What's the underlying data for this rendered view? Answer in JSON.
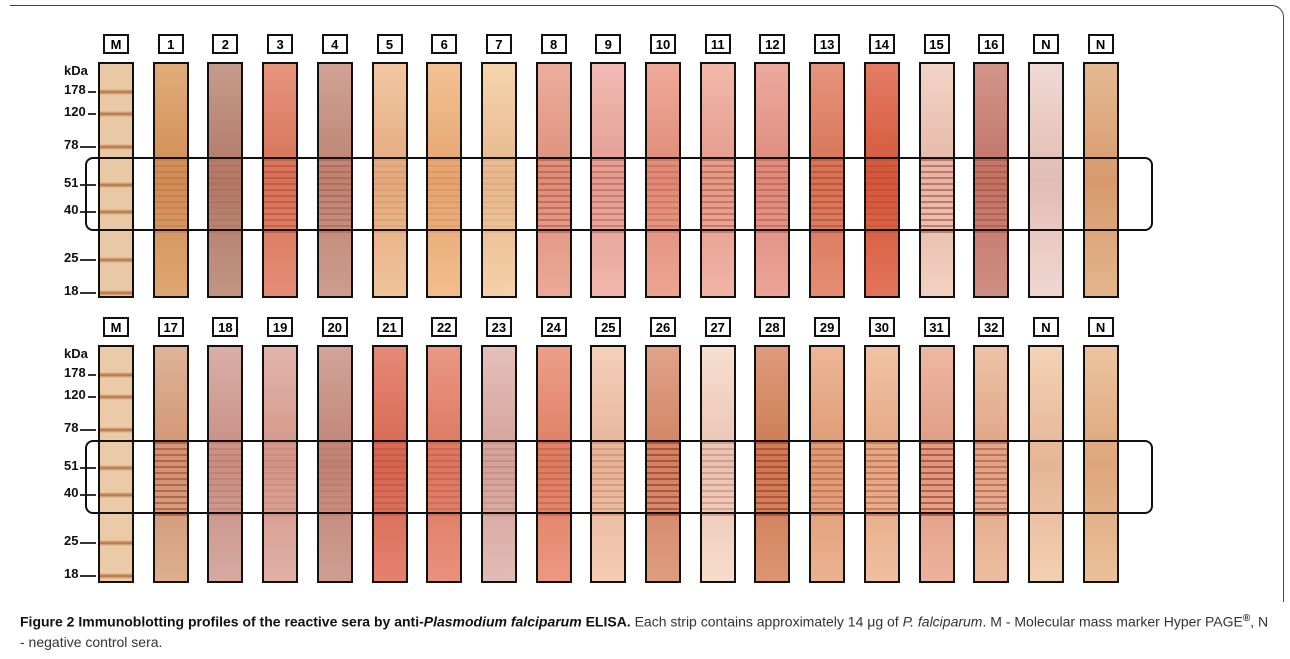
{
  "figure": {
    "rows": [
      {
        "lanes": [
          "M",
          "1",
          "2",
          "3",
          "4",
          "5",
          "6",
          "7",
          "8",
          "9",
          "10",
          "11",
          "12",
          "13",
          "14",
          "15",
          "16",
          "N",
          "N"
        ],
        "unit": "kDa",
        "markers": [
          "178",
          "120",
          "78",
          "51",
          "40",
          "25",
          "18"
        ]
      },
      {
        "lanes": [
          "M",
          "17",
          "18",
          "19",
          "20",
          "21",
          "22",
          "23",
          "24",
          "25",
          "26",
          "27",
          "28",
          "29",
          "30",
          "31",
          "32",
          "N",
          "N"
        ],
        "unit": "kDa",
        "markers": [
          "178",
          "120",
          "78",
          "51",
          "40",
          "25",
          "18"
        ]
      }
    ]
  },
  "caption": {
    "label": "Figure 2",
    "title_start": " Immunoblotting profiles of the reactive sera by anti-",
    "title_italic": "Plasmodium falciparum",
    "title_end": " ELISA.",
    "text_1": " Each strip contains approximately 14 μg of ",
    "text_italic": "P. falciparum",
    "text_2": ". M - Molecular mass marker Hyper PAGE",
    "superscript": "®",
    "text_3": ", N - negative control sera."
  }
}
